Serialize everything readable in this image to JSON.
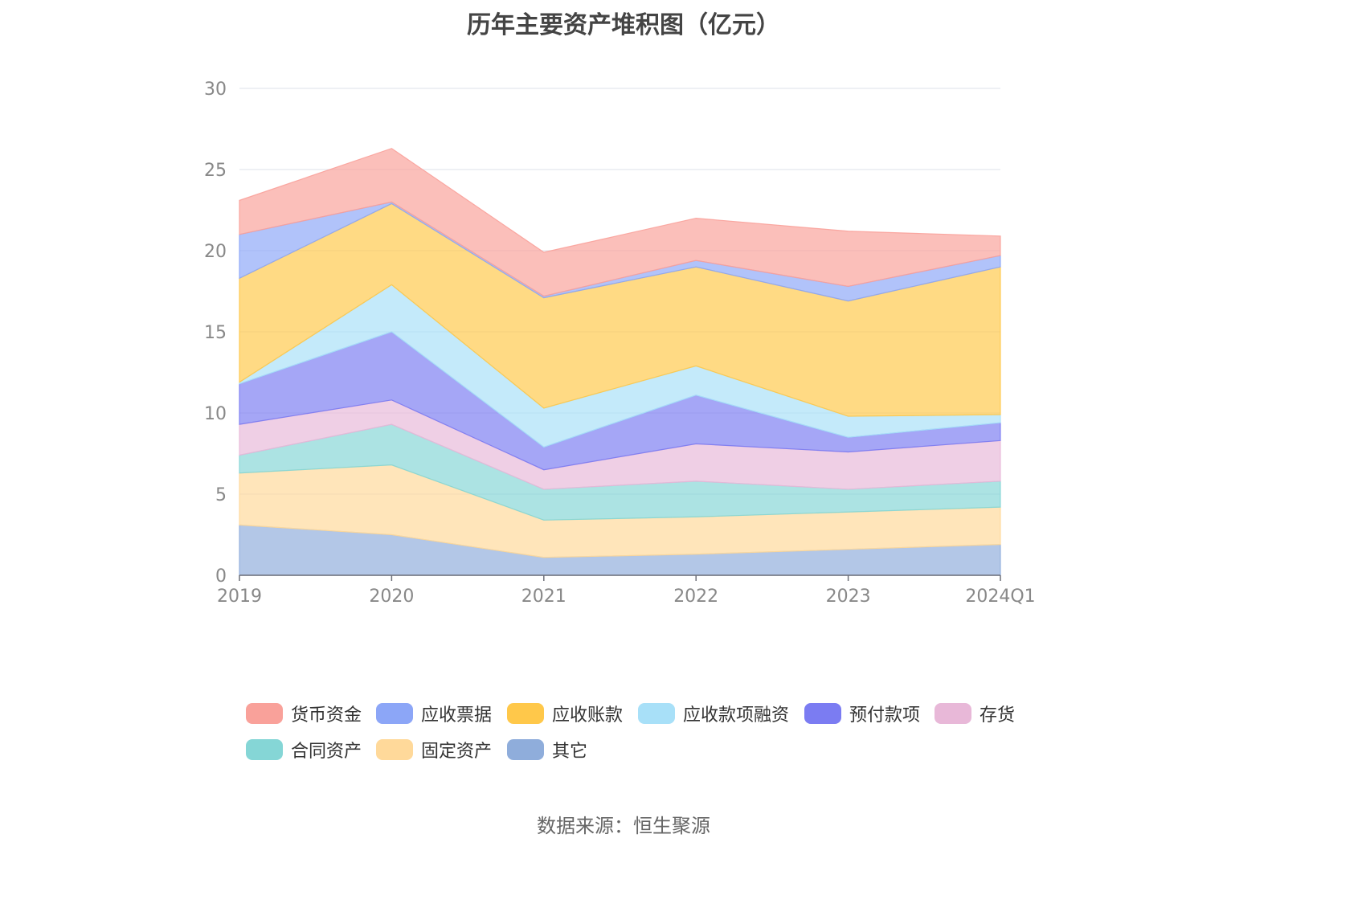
{
  "chart_data": {
    "type": "area",
    "stacked": true,
    "title": "历年主要资产堆积图（亿元）",
    "xlabel": "",
    "ylabel": "",
    "ylim": [
      0,
      30
    ],
    "y_ticks": [
      0,
      5,
      10,
      15,
      20,
      25,
      30
    ],
    "grid": true,
    "legend_position": "bottom",
    "categories": [
      "2019",
      "2020",
      "2021",
      "2022",
      "2023",
      "2024Q1"
    ],
    "series": [
      {
        "name": "其它",
        "color": "#8FADDB",
        "values": [
          3.1,
          2.5,
          1.1,
          1.3,
          1.6,
          1.9
        ]
      },
      {
        "name": "固定资产",
        "color": "#FFD99A",
        "values": [
          3.2,
          4.3,
          2.3,
          2.3,
          2.3,
          2.3
        ]
      },
      {
        "name": "合同资产",
        "color": "#85D6D6",
        "values": [
          1.1,
          2.5,
          1.9,
          2.2,
          1.4,
          1.6
        ]
      },
      {
        "name": "存货",
        "color": "#E8B8D8",
        "values": [
          1.9,
          1.5,
          1.2,
          2.3,
          2.3,
          2.5
        ]
      },
      {
        "name": "预付款项",
        "color": "#7B7CF2",
        "values": [
          2.5,
          4.2,
          1.4,
          3.0,
          0.9,
          1.1
        ]
      },
      {
        "name": "应收款项融资",
        "color": "#A8E0F8",
        "values": [
          0.1,
          2.9,
          2.4,
          1.8,
          1.3,
          0.5
        ]
      },
      {
        "name": "应收账款",
        "color": "#FFC84A",
        "values": [
          6.4,
          5.0,
          6.8,
          6.1,
          7.1,
          9.1
        ]
      },
      {
        "name": "应收票据",
        "color": "#8CA6F7",
        "values": [
          2.7,
          0.1,
          0.1,
          0.4,
          0.9,
          0.7
        ]
      },
      {
        "name": "货币资金",
        "color": "#F9A19A",
        "values": [
          2.1,
          3.3,
          2.7,
          2.6,
          3.4,
          1.2
        ]
      }
    ]
  },
  "legend_order": [
    "货币资金",
    "应收票据",
    "应收账款",
    "应收款项融资",
    "预付款项",
    "存货",
    "合同资产",
    "固定资产",
    "其它"
  ],
  "source_text": "数据来源：恒生聚源"
}
